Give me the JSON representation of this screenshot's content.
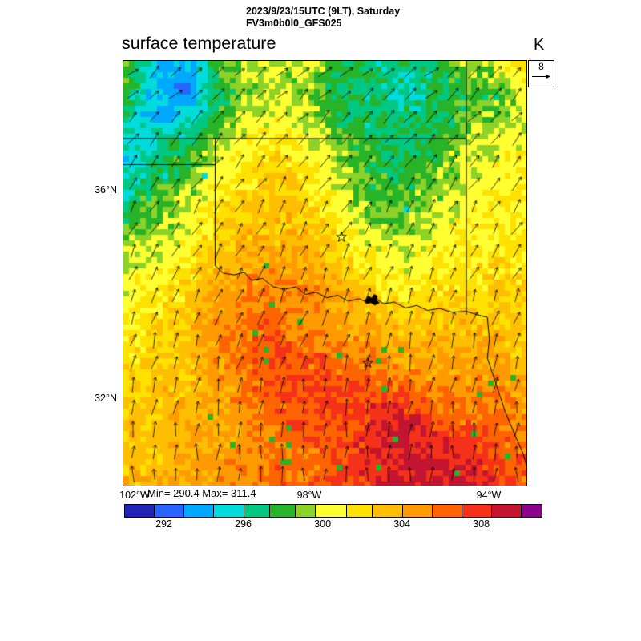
{
  "header": {
    "line1": "2023/9/23/15UTC (9LT), Saturday",
    "line2": "FV3m0b0l0_GFS025"
  },
  "plot": {
    "title": "surface temperature",
    "unit": "K",
    "minmax": "Min= 290.4 Max= 311.4",
    "reference_vector_value": "8"
  },
  "axis": {
    "lat": [
      {
        "label": "36°N"
      },
      {
        "label": "32°N"
      }
    ],
    "lon": [
      {
        "label": "102°W"
      },
      {
        "label": "98°W"
      },
      {
        "label": "94°W"
      }
    ]
  },
  "chart_data": {
    "type": "heatmap",
    "title": "surface temperature",
    "units": "K",
    "valid_time": "2023/9/23/15UTC (9LT), Saturday",
    "model_run": "FV3m0b0l0_GFS025",
    "field_min": 290.4,
    "field_max": 311.4,
    "wind": {
      "reference_value": 8,
      "description": "surface wind vectors pointing from south-southwest toward north-northeast, veering more easterly toward the north of the domain"
    },
    "colorbar_range": [
      290,
      311
    ],
    "colorbar_ticks": [
      292,
      296,
      300,
      304,
      308
    ],
    "colormap": [
      {
        "max": 291.5,
        "color": "#2323b4"
      },
      {
        "max": 293.0,
        "color": "#2a64ff"
      },
      {
        "max": 294.5,
        "color": "#00a8ff"
      },
      {
        "max": 296.0,
        "color": "#00dcdc"
      },
      {
        "max": 297.3,
        "color": "#00c882"
      },
      {
        "max": 298.6,
        "color": "#28b428"
      },
      {
        "max": 299.6,
        "color": "#8cd228"
      },
      {
        "max": 301.2,
        "color": "#ffff32"
      },
      {
        "max": 302.5,
        "color": "#ffe100"
      },
      {
        "max": 304.0,
        "color": "#ffbe00"
      },
      {
        "max": 305.5,
        "color": "#ff9b00"
      },
      {
        "max": 307.0,
        "color": "#ff6400"
      },
      {
        "max": 308.5,
        "color": "#f53219"
      },
      {
        "max": 310.0,
        "color": "#c31432"
      },
      {
        "max": 311.0,
        "color": "#8b008b"
      }
    ],
    "temperature_grid": {
      "note": "coarse 14x14 approximation of plotted field in K, row-major from northwest corner",
      "values": [
        [
          299,
          295,
          294,
          298,
          300,
          299,
          300,
          298,
          297,
          297,
          297,
          299,
          300,
          302
        ],
        [
          298,
          294,
          293,
          297,
          299,
          300,
          299,
          297,
          297,
          296,
          297,
          298,
          298,
          300
        ],
        [
          296,
          295,
          296,
          298,
          300,
          301,
          300,
          298,
          297,
          297,
          297,
          299,
          300,
          300
        ],
        [
          295,
          297,
          298,
          300,
          301,
          302,
          301,
          299,
          298,
          297,
          298,
          300,
          300,
          301
        ],
        [
          296,
          298,
          299,
          301,
          302,
          303,
          302,
          300,
          298,
          298,
          299,
          300,
          301,
          301
        ],
        [
          298,
          299,
          300,
          302,
          303,
          303,
          303,
          301,
          299,
          299,
          300,
          301,
          301,
          301
        ],
        [
          300,
          300,
          301,
          303,
          304,
          304,
          304,
          302,
          301,
          300,
          301,
          301,
          302,
          302
        ],
        [
          300,
          301,
          302,
          304,
          305,
          305,
          305,
          304,
          302,
          301,
          302,
          302,
          302,
          302
        ],
        [
          301,
          302,
          303,
          305,
          306,
          306,
          305,
          304,
          304,
          303,
          303,
          303,
          303,
          303
        ],
        [
          302,
          302,
          303,
          305,
          306,
          307,
          306,
          306,
          305,
          304,
          304,
          304,
          304,
          303
        ],
        [
          302,
          303,
          303,
          304,
          306,
          307,
          307,
          307,
          307,
          306,
          305,
          305,
          305,
          304
        ],
        [
          303,
          303,
          304,
          304,
          305,
          306,
          307,
          307,
          308,
          309,
          307,
          306,
          306,
          305
        ],
        [
          303,
          303,
          304,
          304,
          305,
          306,
          306,
          307,
          308,
          309,
          309,
          308,
          307,
          306
        ],
        [
          303,
          304,
          304,
          305,
          305,
          306,
          306,
          307,
          308,
          309,
          309,
          309,
          308,
          306
        ]
      ]
    },
    "boundaries": [
      [
        [
          0.0,
          0.183
        ],
        [
          0.851,
          0.183
        ]
      ],
      [
        [
          0.851,
          0.0
        ],
        [
          0.851,
          0.598
        ]
      ],
      [
        [
          0.0,
          0.2443
        ],
        [
          0.2276,
          0.2443
        ]
      ],
      [
        [
          0.2276,
          0.183
        ],
        [
          0.2276,
          0.4823
        ]
      ],
      [
        [
          0.2276,
          0.4823
        ],
        [
          0.248,
          0.5
        ],
        [
          0.275,
          0.504
        ],
        [
          0.3,
          0.498
        ],
        [
          0.318,
          0.517
        ],
        [
          0.345,
          0.512
        ],
        [
          0.372,
          0.532
        ],
        [
          0.4,
          0.538
        ],
        [
          0.428,
          0.532
        ],
        [
          0.452,
          0.55
        ],
        [
          0.478,
          0.545
        ],
        [
          0.505,
          0.558
        ],
        [
          0.532,
          0.552
        ],
        [
          0.558,
          0.566
        ],
        [
          0.585,
          0.56
        ],
        [
          0.61,
          0.571
        ],
        [
          0.628,
          0.56
        ],
        [
          0.645,
          0.572
        ],
        [
          0.672,
          0.568
        ],
        [
          0.7,
          0.582
        ],
        [
          0.728,
          0.576
        ],
        [
          0.755,
          0.588
        ],
        [
          0.785,
          0.583
        ],
        [
          0.815,
          0.592
        ],
        [
          0.851,
          0.59
        ],
        [
          0.878,
          0.598
        ],
        [
          0.903,
          0.604
        ]
      ],
      [
        [
          0.903,
          0.604
        ],
        [
          0.908,
          0.655
        ],
        [
          0.903,
          0.7
        ],
        [
          0.918,
          0.742
        ],
        [
          0.934,
          0.788
        ],
        [
          0.948,
          0.828
        ],
        [
          0.972,
          0.882
        ],
        [
          0.993,
          0.928
        ],
        [
          1.0,
          0.952
        ]
      ]
    ],
    "lake": [
      [
        0.6,
        0.563
      ],
      [
        0.608,
        0.553
      ],
      [
        0.616,
        0.558
      ],
      [
        0.622,
        0.549
      ],
      [
        0.631,
        0.554
      ],
      [
        0.628,
        0.563
      ],
      [
        0.636,
        0.57
      ],
      [
        0.624,
        0.576
      ],
      [
        0.612,
        0.569
      ],
      [
        0.602,
        0.573
      ]
    ],
    "stars": [
      {
        "x": 0.541,
        "y": 0.415
      },
      {
        "x": 0.6064,
        "y": 0.7113
      }
    ]
  }
}
